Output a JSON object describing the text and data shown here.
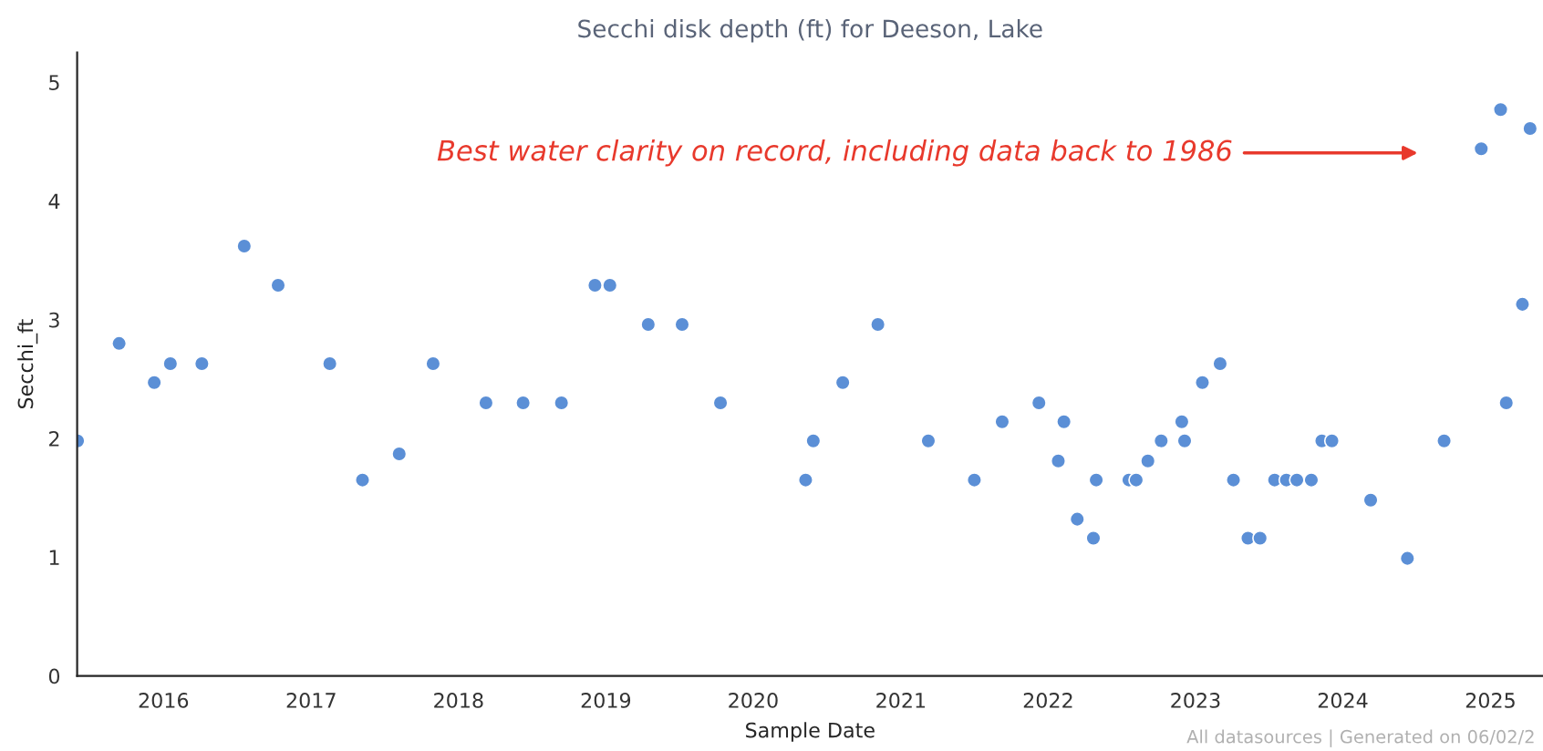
{
  "chart_data": {
    "type": "scatter",
    "title": "Secchi disk depth (ft) for Deeson, Lake",
    "xlabel": "Sample Date",
    "ylabel": "Secchi_ft",
    "x": [
      "2015-06-02",
      "2015-09-13",
      "2015-12-09",
      "2016-01-18",
      "2016-04-05",
      "2016-07-19",
      "2016-10-11",
      "2017-02-16",
      "2017-05-08",
      "2017-08-07",
      "2017-10-30",
      "2018-03-10",
      "2018-06-10",
      "2018-09-13",
      "2018-12-05",
      "2019-01-11",
      "2019-04-16",
      "2019-07-09",
      "2019-10-12",
      "2020-05-10",
      "2020-05-29",
      "2020-08-10",
      "2020-11-05",
      "2021-03-10",
      "2021-07-02",
      "2021-09-09",
      "2021-12-09",
      "2022-01-26",
      "2022-02-09",
      "2022-03-14",
      "2022-04-23",
      "2022-04-30",
      "2022-07-20",
      "2022-08-07",
      "2022-09-05",
      "2022-10-08",
      "2022-11-28",
      "2022-12-05",
      "2023-01-18",
      "2023-03-03",
      "2023-04-05",
      "2023-05-11",
      "2023-06-10",
      "2023-07-16",
      "2023-08-14",
      "2023-09-09",
      "2023-10-15",
      "2023-11-10",
      "2023-12-05",
      "2024-03-10",
      "2024-06-09",
      "2024-09-08",
      "2024-12-09",
      "2025-01-26",
      "2025-02-09",
      "2025-03-21",
      "2025-04-09"
    ],
    "series": [
      {
        "color": "#5b8fd6",
        "values": [
          1.98,
          2.8,
          2.47,
          2.63,
          2.63,
          3.62,
          3.29,
          2.63,
          1.65,
          1.87,
          2.63,
          2.3,
          2.3,
          2.3,
          3.29,
          3.29,
          2.96,
          2.96,
          2.3,
          1.65,
          1.98,
          2.47,
          2.96,
          1.98,
          1.65,
          2.14,
          2.3,
          1.81,
          2.14,
          1.32,
          1.16,
          1.65,
          1.65,
          1.65,
          1.81,
          1.98,
          2.14,
          1.98,
          2.47,
          2.63,
          1.65,
          1.16,
          1.16,
          1.65,
          1.65,
          1.65,
          1.65,
          1.98,
          1.98,
          1.48,
          0.99,
          1.98,
          4.44,
          4.77,
          2.3,
          3.13,
          4.61
        ]
      }
    ],
    "marker": "circle",
    "xlim": [
      "2015-06-01",
      "2025-05-11"
    ],
    "xticks": [
      "2016",
      "2017",
      "2018",
      "2019",
      "2020",
      "2021",
      "2022",
      "2023",
      "2024",
      "2025"
    ],
    "ylim": [
      0,
      5.25
    ],
    "yticks": [
      0,
      1,
      2,
      3,
      4,
      5
    ],
    "grid": false,
    "annotations": [
      "Best water clarity on record, including data back to 1986",
      "All datasources | Generated on 06/02/2"
    ]
  }
}
